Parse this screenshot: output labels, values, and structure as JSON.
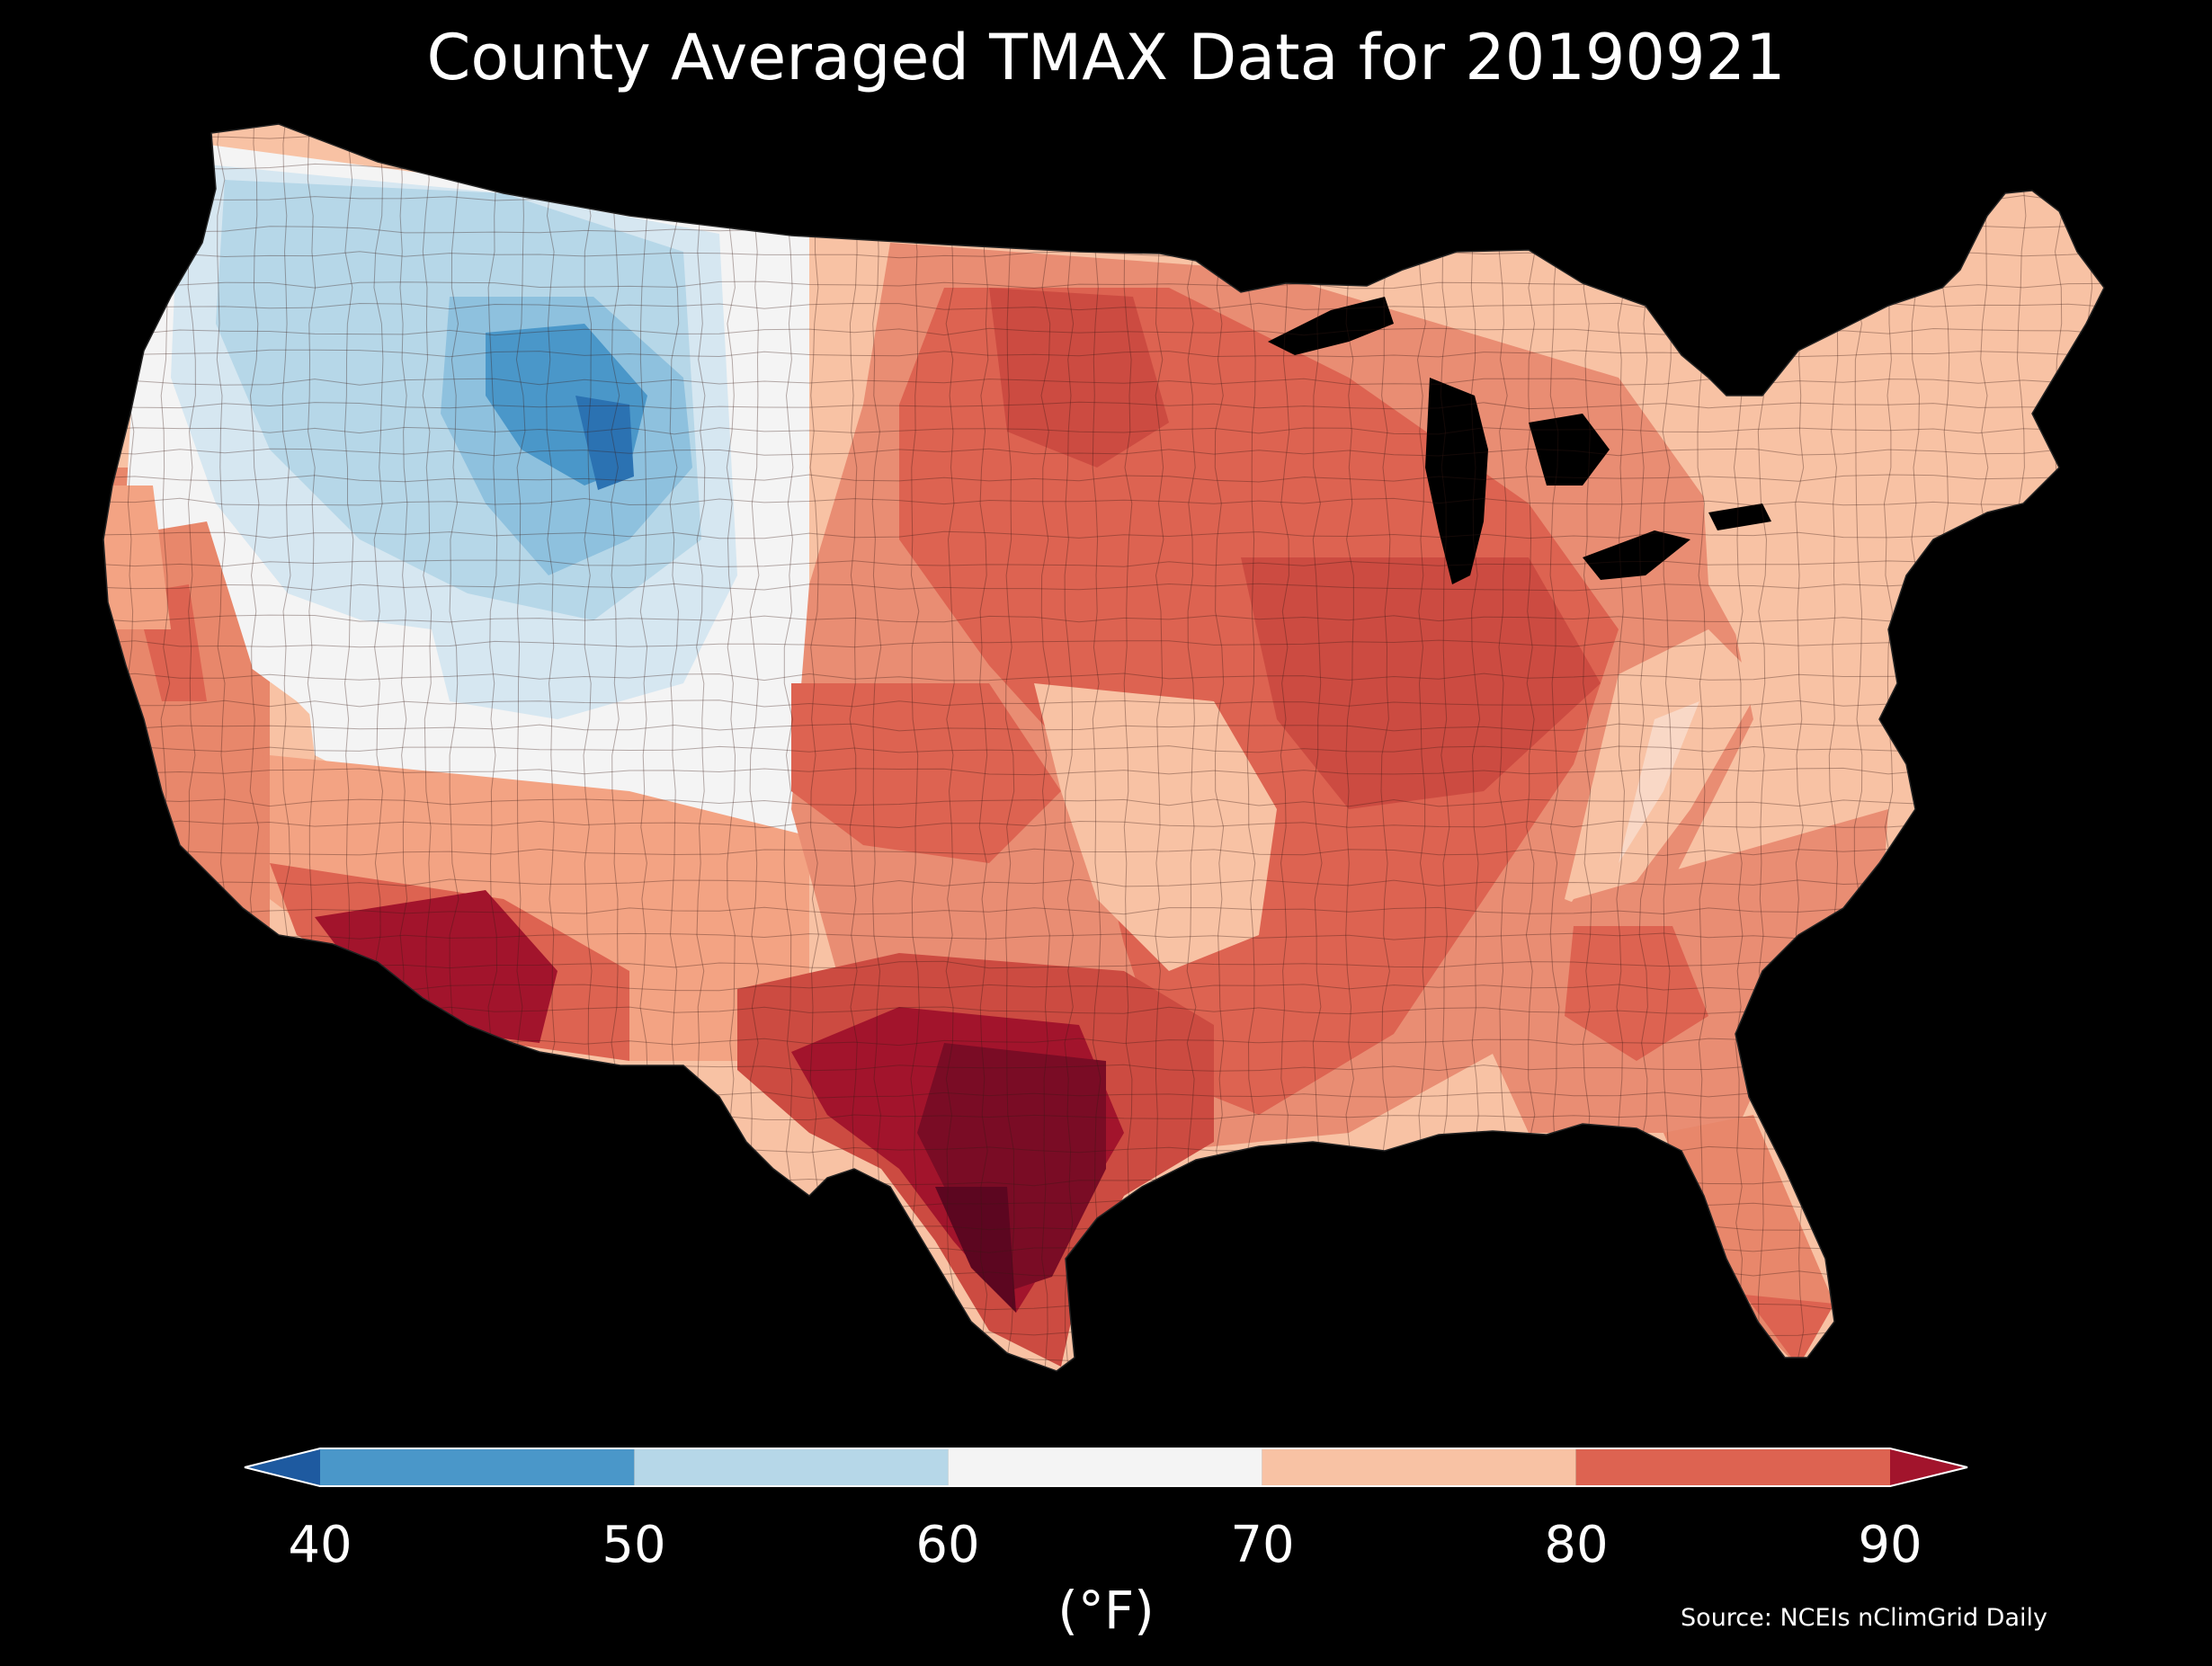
{
  "title": "County Averaged TMAX Data for 20190921",
  "colorbar": {
    "ticks": [
      "40",
      "50",
      "60",
      "70",
      "80",
      "90"
    ],
    "unit": "(°F)",
    "bins": [
      {
        "min": 40,
        "max": 50,
        "color": "#4a97c9"
      },
      {
        "min": 50,
        "max": 60,
        "color": "#b6d7e8"
      },
      {
        "min": 60,
        "max": 70,
        "color": "#f4f4f4"
      },
      {
        "min": 70,
        "max": 80,
        "color": "#f8c2a4"
      },
      {
        "min": 80,
        "max": 90,
        "color": "#dd6351"
      }
    ],
    "under_color": "#1e5aa0",
    "over_color": "#a2142c"
  },
  "source": "Source: NCEIs nClimGrid Daily",
  "map": {
    "region": "Contiguous United States",
    "units": "county",
    "background": "#000000",
    "regions_by_temperature": [
      {
        "area": "Pacific Northwest / Oregon",
        "temp_range": "60-70"
      },
      {
        "area": "Idaho / Montana / Wyoming Rockies",
        "temp_range": "40-60"
      },
      {
        "area": "Nevada / Utah",
        "temp_range": "50-70"
      },
      {
        "area": "California coast",
        "temp_range": "70-90"
      },
      {
        "area": "Arizona desert",
        "temp_range": "90+"
      },
      {
        "area": "Northern Plains / Midwest",
        "temp_range": "80-90"
      },
      {
        "area": "South Texas",
        "temp_range": "90+"
      },
      {
        "area": "Southeast",
        "temp_range": "80-90"
      },
      {
        "area": "New England / Appalachians",
        "temp_range": "70-80"
      }
    ]
  }
}
